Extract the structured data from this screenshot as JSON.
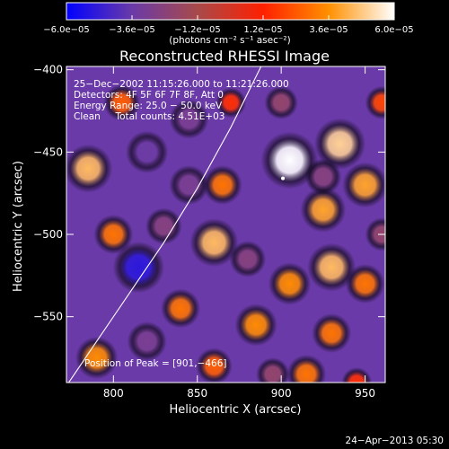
{
  "colorbar": {
    "ticks": [
      "−6.0e−05",
      "−3.6e−05",
      "−1.2e−05",
      "1.2e−05",
      "3.6e−05",
      "6.0e−05"
    ],
    "unit_label": "(photons cm⁻² s⁻¹ asec⁻²)",
    "range": [
      -6e-05,
      6e-05
    ],
    "palette": [
      "#0000ff",
      "#6a3aa8",
      "#a84a4a",
      "#ff2000",
      "#ff9000",
      "#ffffff"
    ]
  },
  "chart_data": {
    "type": "heatmap",
    "title": "Reconstructed RHESSI Image",
    "xlabel": "Heliocentric X (arcsec)",
    "ylabel": "Heliocentric Y (arcsec)",
    "xlim": [
      772,
      962
    ],
    "ylim": [
      -590,
      -398
    ],
    "x_ticks": [
      800,
      850,
      900,
      950
    ],
    "y_ticks": [
      -400,
      -450,
      -500,
      -550
    ],
    "x_tick_labels": [
      "800",
      "850",
      "900",
      "950"
    ],
    "y_tick_labels": [
      "−400",
      "−450",
      "−500",
      "−550"
    ],
    "info_lines": [
      "25−Dec−2002 11:15:26.000 to 11:21:26.000",
      "Detectors: 4F 5F 6F 7F 8F, Att 0",
      "Energy Range: 25.0 − 50.0 keV",
      "Clean     Total counts: 4.51E+03"
    ],
    "peak_label": "Position of Peak = [901,−466]",
    "peak": [
      901,
      -466
    ],
    "limb_curve": [
      [
        772,
        -592
      ],
      [
        790,
        -565
      ],
      [
        810,
        -535
      ],
      [
        830,
        -505
      ],
      [
        850,
        -472
      ],
      [
        870,
        -435
      ],
      [
        888,
        -398
      ]
    ],
    "sources": [
      {
        "x": 905,
        "y": -455,
        "v": 6e-05
      },
      {
        "x": 935,
        "y": -445,
        "v": 5e-05
      },
      {
        "x": 950,
        "y": -470,
        "v": 4e-05
      },
      {
        "x": 925,
        "y": -485,
        "v": 4e-05
      },
      {
        "x": 930,
        "y": -520,
        "v": 4.5e-05
      },
      {
        "x": 950,
        "y": -530,
        "v": 3e-05
      },
      {
        "x": 905,
        "y": -530,
        "v": 3.5e-05
      },
      {
        "x": 885,
        "y": -555,
        "v": 3.5e-05
      },
      {
        "x": 930,
        "y": -560,
        "v": 3e-05
      },
      {
        "x": 915,
        "y": -585,
        "v": 3e-05
      },
      {
        "x": 860,
        "y": -505,
        "v": 4.5e-05
      },
      {
        "x": 865,
        "y": -470,
        "v": 3e-05
      },
      {
        "x": 840,
        "y": -545,
        "v": 3e-05
      },
      {
        "x": 860,
        "y": -580,
        "v": 2.5e-05
      },
      {
        "x": 800,
        "y": -500,
        "v": 3e-05
      },
      {
        "x": 785,
        "y": -460,
        "v": 4.5e-05
      },
      {
        "x": 790,
        "y": -575,
        "v": 3.5e-05
      },
      {
        "x": 805,
        "y": -420,
        "v": 2.5e-05
      },
      {
        "x": 870,
        "y": -420,
        "v": 1.5e-05
      },
      {
        "x": 960,
        "y": -420,
        "v": 2e-05
      },
      {
        "x": 945,
        "y": -590,
        "v": 1.5e-05
      },
      {
        "x": 820,
        "y": -450,
        "v": -3.5e-05
      },
      {
        "x": 845,
        "y": -470,
        "v": -3e-05
      },
      {
        "x": 815,
        "y": -520,
        "v": -5e-05
      },
      {
        "x": 830,
        "y": -495,
        "v": -2.5e-05
      },
      {
        "x": 880,
        "y": -515,
        "v": -2.5e-05
      },
      {
        "x": 820,
        "y": -565,
        "v": -3e-05
      },
      {
        "x": 845,
        "y": -430,
        "v": -3e-05
      },
      {
        "x": 900,
        "y": -420,
        "v": -2e-05
      },
      {
        "x": 925,
        "y": -465,
        "v": -2.5e-05
      },
      {
        "x": 960,
        "y": -500,
        "v": -2e-05
      },
      {
        "x": 895,
        "y": -585,
        "v": -2e-05
      }
    ]
  },
  "timestamp": "24−Apr−2013 05:30"
}
